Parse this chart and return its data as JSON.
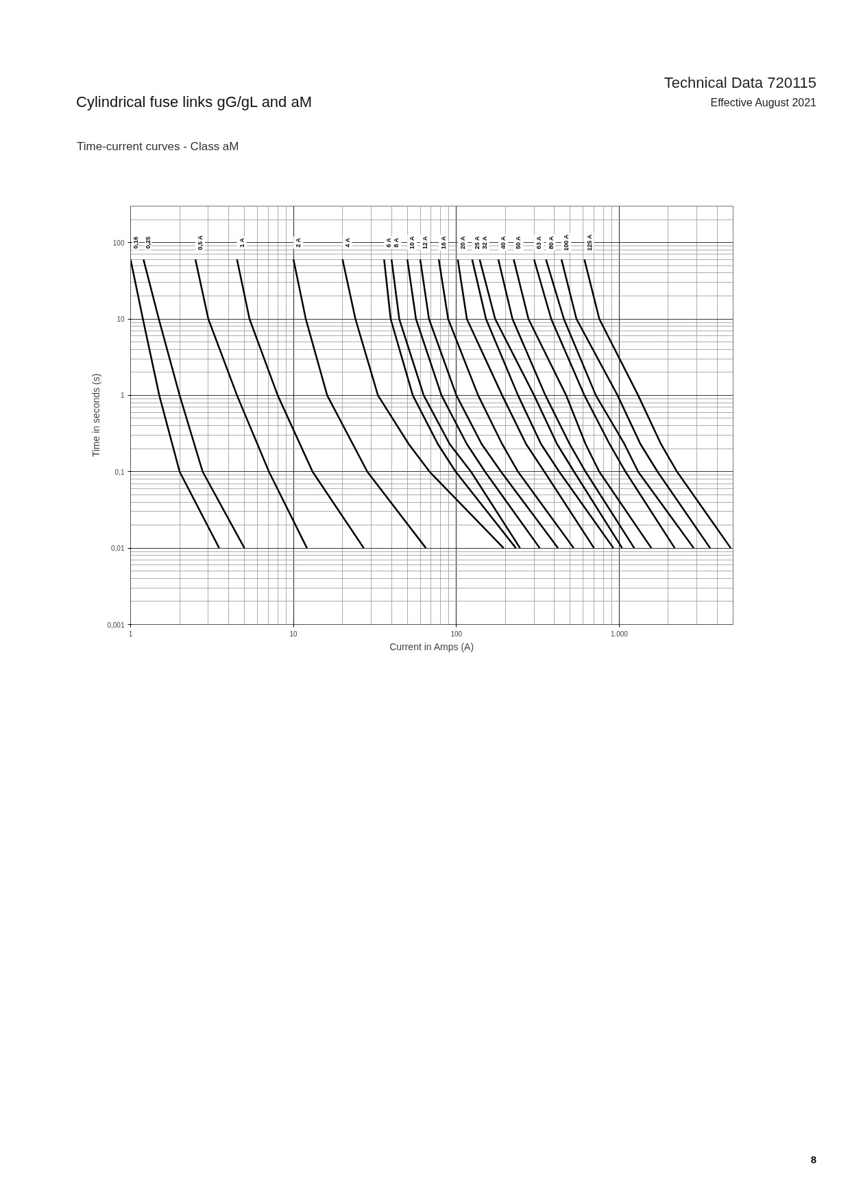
{
  "chart_data": {
    "type": "line",
    "title": "Cylindrical fuse links gG/gL and aM",
    "subtitle": "Time-current curves - Class aM",
    "xlabel": "Current in Amps (A)",
    "ylabel": "Time in seconds (s)",
    "annotations": [
      "Technical Data 720115",
      "Effective August 2021",
      "8"
    ],
    "log": "xy",
    "grid": true,
    "marker": "none",
    "line_style": "solid",
    "xlim": [
      1,
      5000
    ],
    "xticks": [
      1,
      10,
      100,
      {
        "value": 1000,
        "label": "1.000"
      }
    ],
    "ylim": [
      0.001,
      300
    ],
    "yticks": [
      {
        "value": 0.001,
        "label": "0,001"
      },
      {
        "value": 0.01,
        "label": "0,01"
      },
      {
        "value": 0.1,
        "label": "0,1"
      },
      1,
      10,
      100
    ],
    "series": [
      {
        "name": "0,16",
        "color": "#000000",
        "x": [
          1.0,
          1.19,
          1.5,
          2.0,
          3.5
        ],
        "values": [
          60,
          10,
          1,
          0.1,
          0.01
        ]
      },
      {
        "name": "0,25",
        "color": "#000000",
        "x": [
          1.2,
          1.49,
          2.0,
          2.77,
          5.0
        ],
        "values": [
          60,
          10,
          1,
          0.1,
          0.01
        ]
      },
      {
        "name": "0,5 A",
        "color": "#000000",
        "x": [
          2.5,
          3.0,
          4.5,
          7.07,
          12.1
        ],
        "values": [
          60,
          10,
          1,
          0.1,
          0.01
        ]
      },
      {
        "name": "1 A",
        "color": "#000000",
        "x": [
          4.5,
          5.37,
          8.0,
          13.1,
          27
        ],
        "values": [
          60,
          10,
          1,
          0.1,
          0.01
        ]
      },
      {
        "name": "2 A",
        "color": "#000000",
        "x": [
          10,
          11.9,
          16.1,
          28.4,
          65
        ],
        "values": [
          60,
          10,
          1,
          0.1,
          0.01
        ]
      },
      {
        "name": "4 A",
        "color": "#000000",
        "x": [
          20,
          24,
          33,
          51,
          68.5,
          195
        ],
        "values": [
          60,
          10,
          1,
          0.23,
          0.1,
          0.01
        ]
      },
      {
        "name": "6 A",
        "color": "#000000",
        "x": [
          36,
          39.5,
          54,
          77,
          99,
          232
        ],
        "values": [
          60,
          10,
          1,
          0.23,
          0.1,
          0.01
        ]
      },
      {
        "name": "8 A",
        "color": "#000000",
        "x": [
          40,
          44.6,
          63,
          91,
          123,
          246
        ],
        "values": [
          60,
          10,
          1,
          0.23,
          0.1,
          0.01
        ]
      },
      {
        "name": "10 A",
        "color": "#000000",
        "x": [
          50,
          56.5,
          81,
          116,
          150,
          325
        ],
        "values": [
          60,
          10,
          1,
          0.23,
          0.1,
          0.01
        ]
      },
      {
        "name": "12 A",
        "color": "#000000",
        "x": [
          60,
          67.9,
          100,
          143,
          188,
          421
        ],
        "values": [
          60,
          10,
          1,
          0.23,
          0.1,
          0.01
        ]
      },
      {
        "name": "16 A",
        "color": "#000000",
        "x": [
          78,
          89,
          136,
          191,
          239,
          525
        ],
        "values": [
          60,
          10,
          1,
          0.23,
          0.1,
          0.01
        ]
      },
      {
        "name": "20 A",
        "color": "#000000",
        "x": [
          102,
          116,
          191,
          268,
          347,
          700
        ],
        "values": [
          60,
          10,
          1,
          0.23,
          0.1,
          0.01
        ]
      },
      {
        "name": "25 A",
        "color": "#000000",
        "x": [
          125,
          152,
          239,
          331,
          428,
          921
        ],
        "values": [
          60,
          10,
          1,
          0.23,
          0.1,
          0.01
        ]
      },
      {
        "name": "32 A",
        "color": "#000000",
        "x": [
          139,
          173,
          300,
          415,
          528,
          1042
        ],
        "values": [
          60,
          10,
          1,
          0.23,
          0.1,
          0.01
        ]
      },
      {
        "name": "40 A",
        "color": "#000000",
        "x": [
          181,
          221,
          352,
          496,
          621,
          1236
        ],
        "values": [
          60,
          10,
          1,
          0.23,
          0.1,
          0.01
        ]
      },
      {
        "name": "50 A",
        "color": "#000000",
        "x": [
          225,
          277,
          472,
          621,
          754,
          1574
        ],
        "values": [
          60,
          10,
          1,
          0.23,
          0.1,
          0.01
        ]
      },
      {
        "name": "63 A",
        "color": "#000000",
        "x": [
          300,
          382,
          611,
          872,
          1092,
          2190
        ],
        "values": [
          60,
          10,
          1,
          0.23,
          0.1,
          0.01
        ]
      },
      {
        "name": "80 A",
        "color": "#000000",
        "x": [
          355,
          457,
          718,
          1076,
          1306,
          2865
        ],
        "values": [
          60,
          10,
          1,
          0.23,
          0.1,
          0.01
        ]
      },
      {
        "name": "100 A",
        "color": "#000000",
        "x": [
          442,
          546,
          976,
          1349,
          1718,
          3614
        ],
        "values": [
          60,
          10,
          1,
          0.23,
          0.1,
          0.01
        ]
      },
      {
        "name": "125 A",
        "color": "#000000",
        "x": [
          611,
          754,
          1306,
          1803,
          2263,
          4834
        ],
        "values": [
          60,
          10,
          1,
          0.23,
          0.1,
          0.01
        ]
      }
    ]
  }
}
